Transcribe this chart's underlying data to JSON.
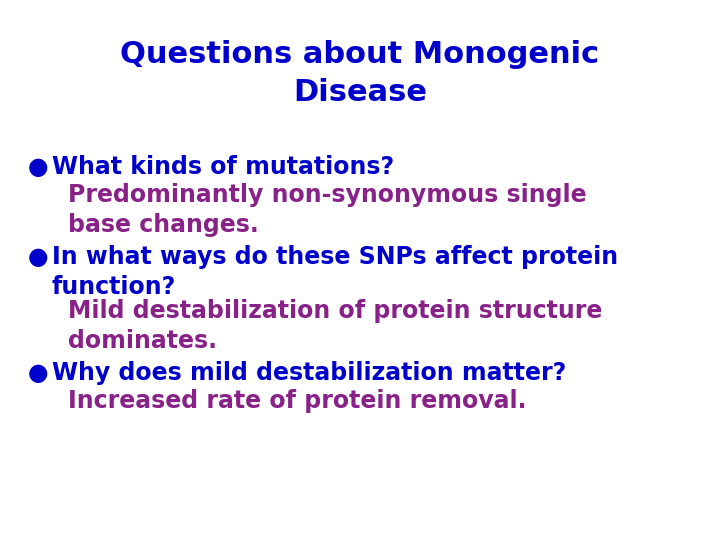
{
  "title_line1": "Questions about Monogenic",
  "title_line2": "Disease",
  "title_color": "#0000CC",
  "title_fontsize": 22,
  "bullet_color": "#0000CC",
  "answer_color": "#882288",
  "bullet_fontsize": 17,
  "answer_fontsize": 17,
  "background_color": "#FFFFFF",
  "bullets": [
    {
      "question": "What kinds of mutations?",
      "answer": "Predominantly non-synonymous single\nbase changes."
    },
    {
      "question": "In what ways do these SNPs affect protein\nfunction?",
      "answer": "Mild destabilization of protein structure\ndominates."
    },
    {
      "question": "Why does mild destabilization matter?",
      "answer": "Increased rate of protein removal."
    }
  ]
}
